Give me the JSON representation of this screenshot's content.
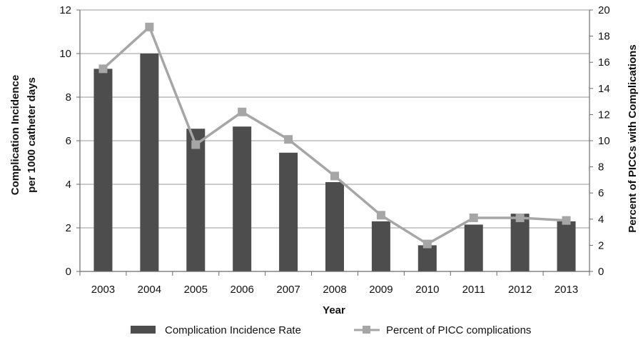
{
  "chart_data": {
    "type": "bar",
    "categories": [
      "2003",
      "2004",
      "2005",
      "2006",
      "2007",
      "2008",
      "2009",
      "2010",
      "2011",
      "2012",
      "2013"
    ],
    "series": [
      {
        "name": "Complication Incidence Rate",
        "kind": "bar",
        "axis": "left",
        "color": "#4d4d4d",
        "values": [
          9.3,
          10.0,
          6.55,
          6.65,
          5.45,
          4.1,
          2.3,
          1.2,
          2.15,
          2.65,
          2.3
        ]
      },
      {
        "name": "Percent of PICC complications",
        "kind": "line",
        "axis": "right",
        "color": "#a6a6a6",
        "values": [
          15.5,
          18.7,
          9.7,
          12.2,
          10.1,
          7.3,
          4.3,
          2.1,
          4.1,
          4.1,
          3.9
        ]
      }
    ],
    "xlabel": "Year",
    "ylabel": "Complication  Incidence per 1000 catheter days",
    "ylabel_lines": [
      "Complication  Incidence",
      "per 1000 catheter days"
    ],
    "y2label": "Percent of PICCs with Complications",
    "ylim": [
      0,
      12
    ],
    "y2lim": [
      0,
      20
    ],
    "yticks": [
      0,
      2,
      4,
      6,
      8,
      10,
      12
    ],
    "y2ticks": [
      0,
      2,
      4,
      6,
      8,
      10,
      12,
      14,
      16,
      18,
      20
    ],
    "grid": true,
    "legend_position": "bottom"
  }
}
